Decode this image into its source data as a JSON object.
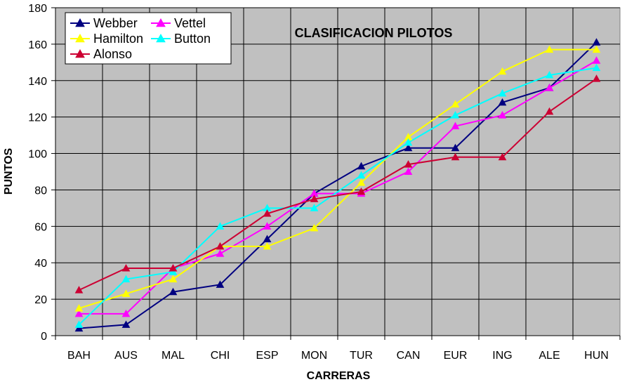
{
  "chart_data": {
    "type": "line",
    "title": "CLASIFICACION PILOTOS",
    "xlabel": "CARRERAS",
    "ylabel": "PUNTOS",
    "categories": [
      "BAH",
      "AUS",
      "MAL",
      "CHI",
      "ESP",
      "MON",
      "TUR",
      "CAN",
      "EUR",
      "ING",
      "ALE",
      "HUN"
    ],
    "ylim": [
      0,
      180
    ],
    "yticks": [
      0,
      20,
      40,
      60,
      80,
      100,
      120,
      140,
      160,
      180
    ],
    "grid": true,
    "background_color": "#c0c0c0",
    "legend_position": "top-left",
    "marker": "triangle",
    "series": [
      {
        "name": "Webber",
        "color": "#000080",
        "values": [
          4,
          6,
          24,
          28,
          53,
          78,
          93,
          103,
          103,
          128,
          136,
          161
        ]
      },
      {
        "name": "Vettel",
        "color": "#ff00ff",
        "values": [
          12,
          12,
          37,
          45,
          60,
          78,
          78,
          90,
          115,
          121,
          136,
          151
        ]
      },
      {
        "name": "Hamilton",
        "color": "#ffff00",
        "values": [
          15,
          23,
          31,
          49,
          49,
          59,
          84,
          109,
          127,
          145,
          157,
          157
        ]
      },
      {
        "name": "Button",
        "color": "#00ffff",
        "values": [
          6,
          31,
          35,
          60,
          70,
          70,
          88,
          106,
          121,
          133,
          143,
          147
        ]
      },
      {
        "name": "Alonso",
        "color": "#cc0033",
        "values": [
          25,
          37,
          37,
          49,
          67,
          75,
          79,
          94,
          98,
          98,
          123,
          141
        ]
      }
    ],
    "legend_order": [
      "Webber",
      "Vettel",
      "Hamilton",
      "Button",
      "Alonso"
    ]
  }
}
